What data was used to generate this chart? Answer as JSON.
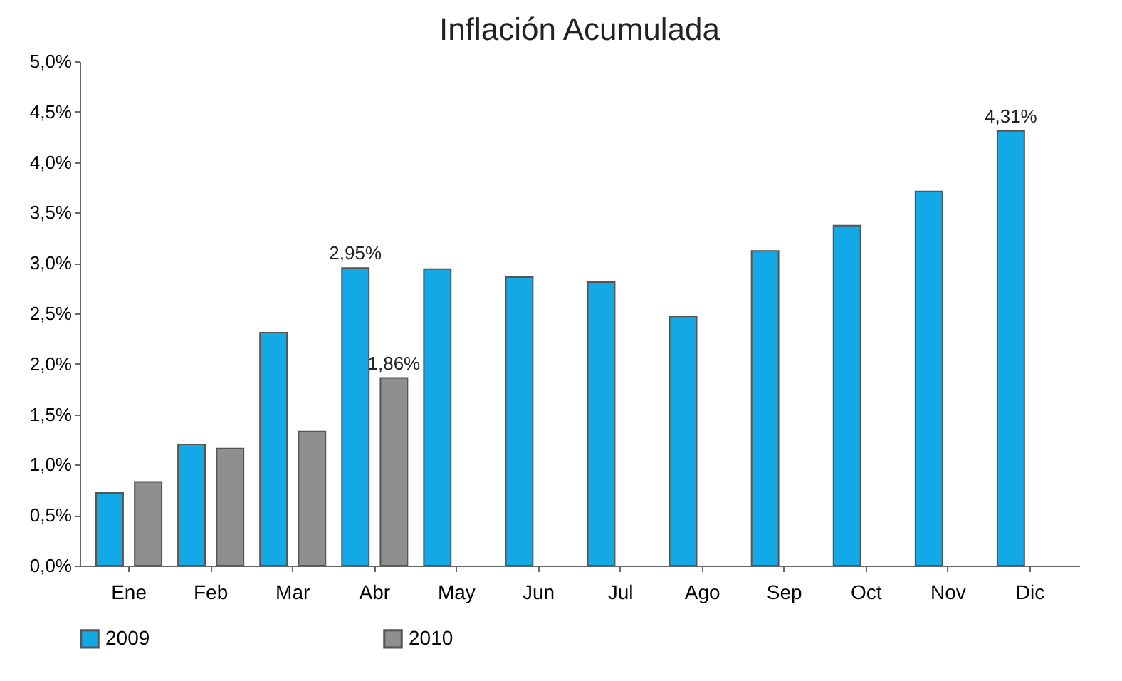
{
  "chart_data": {
    "type": "bar",
    "title": "Inflación Acumulada",
    "categories": [
      "Ene",
      "Feb",
      "Mar",
      "Abr",
      "May",
      "Jun",
      "Jul",
      "Ago",
      "Sep",
      "Oct",
      "Nov",
      "Dic"
    ],
    "series": [
      {
        "name": "2009",
        "color": "#12a9e6",
        "values": [
          0.72,
          1.2,
          2.31,
          2.95,
          2.94,
          2.86,
          2.81,
          2.47,
          3.12,
          3.37,
          3.71,
          4.31
        ],
        "value_labels": [
          null,
          null,
          null,
          "2,95%",
          null,
          null,
          null,
          null,
          null,
          null,
          null,
          "4,31%"
        ]
      },
      {
        "name": "2010",
        "color": "#8f8f8f",
        "values": [
          0.83,
          1.16,
          1.33,
          1.86,
          null,
          null,
          null,
          null,
          null,
          null,
          null,
          null
        ],
        "value_labels": [
          null,
          null,
          null,
          "1,86%",
          null,
          null,
          null,
          null,
          null,
          null,
          null,
          null
        ]
      }
    ],
    "ylim": [
      0,
      5
    ],
    "yticks": [
      {
        "value": 0,
        "label": "0,0%"
      },
      {
        "value": 0.5,
        "label": "0,5%"
      },
      {
        "value": 1,
        "label": "1,0%"
      },
      {
        "value": 1.5,
        "label": "1,5%"
      },
      {
        "value": 2,
        "label": "2,0%"
      },
      {
        "value": 2.5,
        "label": "2,5%"
      },
      {
        "value": 3,
        "label": "3,0%"
      },
      {
        "value": 3.5,
        "label": "3,5%"
      },
      {
        "value": 4,
        "label": "4,0%"
      },
      {
        "value": 4.5,
        "label": "4,5%"
      },
      {
        "value": 5,
        "label": "5,0%"
      }
    ],
    "grid": false,
    "legend": "bottom"
  }
}
